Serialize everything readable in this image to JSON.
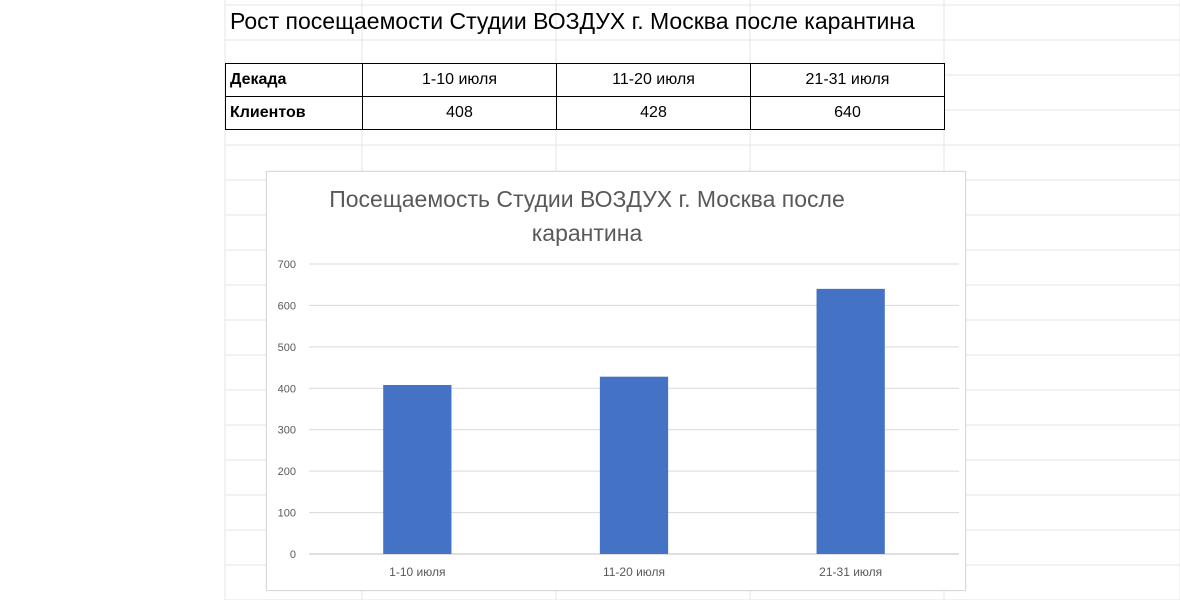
{
  "sheet_title": "Рост посещаемости Студии ВОЗДУХ г. Москва после карантина",
  "table": {
    "headers": [
      "Декада",
      "1-10 июля",
      "11-20 июля",
      "21-31 июля"
    ],
    "row_label": "Клиентов",
    "values": [
      "408",
      "428",
      "640"
    ]
  },
  "chart_data": {
    "type": "bar",
    "title": "Посещаемость Студии ВОЗДУХ г. Москва после карантина",
    "categories": [
      "1-10 июля",
      "11-20 июля",
      "21-31 июля"
    ],
    "values": [
      408,
      428,
      640
    ],
    "ylim": [
      0,
      700
    ],
    "yticks": [
      0,
      100,
      200,
      300,
      400,
      500,
      600,
      700
    ],
    "grid": true,
    "legend": "none",
    "bar_color": "#4472C4"
  }
}
